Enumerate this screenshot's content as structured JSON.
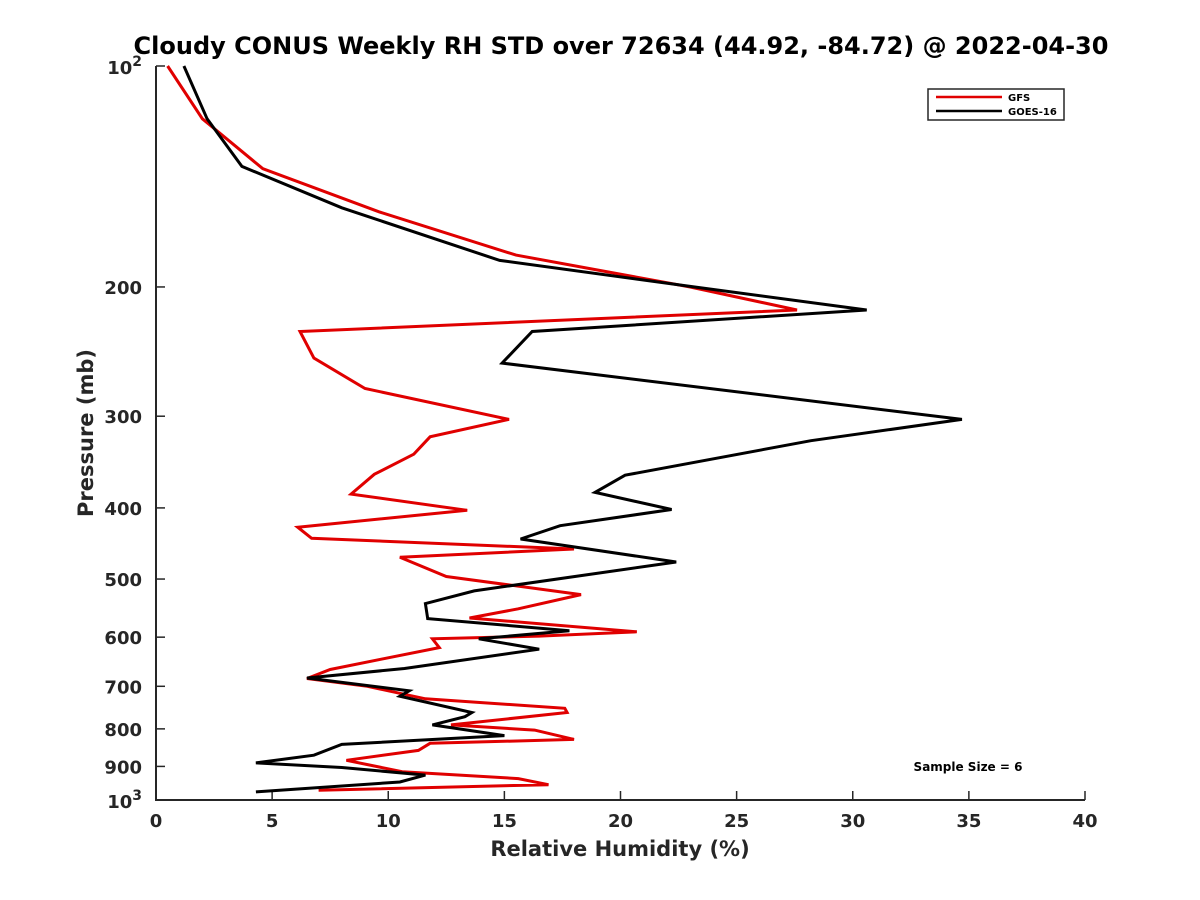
{
  "chart_data": {
    "type": "line",
    "title": "Cloudy CONUS Weekly RH STD over 72634 (44.92, -84.72) @ 2022-04-30",
    "xlabel": "Relative Humidity (%)",
    "ylabel": "Pressure (mb)",
    "xlim": [
      0,
      40
    ],
    "ylim": [
      100,
      1000
    ],
    "y_scale": "log",
    "y_reversed": true,
    "grid": false,
    "legend_position": "top-right",
    "x_ticks": [
      0,
      5,
      10,
      15,
      20,
      25,
      30,
      35,
      40
    ],
    "x_tick_labels": [
      "0",
      "5",
      "10",
      "15",
      "20",
      "25",
      "30",
      "35",
      "40"
    ],
    "y_ticks": [
      200,
      300,
      400,
      500,
      600,
      700,
      800,
      900
    ],
    "y_tick_labels": [
      "200",
      "300",
      "400",
      "500",
      "600",
      "700",
      "800",
      "900"
    ],
    "y_decade_ticks": [
      {
        "value": 100,
        "base": "10",
        "exp": "2"
      },
      {
        "value": 1000,
        "base": "10",
        "exp": "3"
      }
    ],
    "annotation": "Sample Size = 6",
    "series": [
      {
        "name": "GFS",
        "color": "#e00000",
        "points": [
          [
            0.5,
            100
          ],
          [
            2.0,
            118
          ],
          [
            4.6,
            138
          ],
          [
            9.6,
            158
          ],
          [
            15.5,
            181
          ],
          [
            23.0,
            200
          ],
          [
            27.6,
            215
          ],
          [
            6.2,
            230
          ],
          [
            6.8,
            250
          ],
          [
            9.0,
            275
          ],
          [
            15.2,
            303
          ],
          [
            11.8,
            320
          ],
          [
            11.1,
            338
          ],
          [
            9.4,
            360
          ],
          [
            8.4,
            383
          ],
          [
            13.4,
            403
          ],
          [
            6.1,
            425
          ],
          [
            6.7,
            440
          ],
          [
            18.0,
            455
          ],
          [
            10.5,
            467
          ],
          [
            12.5,
            496
          ],
          [
            18.3,
            525
          ],
          [
            15.6,
            549
          ],
          [
            13.5,
            565
          ],
          [
            20.7,
            590
          ],
          [
            16.5,
            598
          ],
          [
            11.9,
            603
          ],
          [
            12.2,
            620
          ],
          [
            9.7,
            643
          ],
          [
            7.5,
            664
          ],
          [
            6.5,
            683
          ],
          [
            9.1,
            700
          ],
          [
            11.6,
            728
          ],
          [
            17.6,
            750
          ],
          [
            17.7,
            760
          ],
          [
            12.7,
            790
          ],
          [
            16.3,
            803
          ],
          [
            18.0,
            827
          ],
          [
            11.8,
            837
          ],
          [
            11.3,
            856
          ],
          [
            8.2,
            883
          ],
          [
            10.6,
            915
          ],
          [
            15.6,
            935
          ],
          [
            16.9,
            953
          ],
          [
            7.0,
            970
          ]
        ]
      },
      {
        "name": "GOES-16",
        "color": "#000000",
        "points": [
          [
            1.2,
            100
          ],
          [
            2.2,
            118
          ],
          [
            3.7,
            137
          ],
          [
            8.0,
            156
          ],
          [
            14.8,
            184
          ],
          [
            23.2,
            200
          ],
          [
            30.6,
            215
          ],
          [
            16.2,
            230
          ],
          [
            14.9,
            254
          ],
          [
            34.7,
            303
          ],
          [
            28.2,
            324
          ],
          [
            20.2,
            361
          ],
          [
            18.9,
            381
          ],
          [
            22.2,
            402
          ],
          [
            17.4,
            423
          ],
          [
            15.7,
            441
          ],
          [
            22.4,
            474
          ],
          [
            13.7,
            519
          ],
          [
            11.6,
            540
          ],
          [
            11.7,
            566
          ],
          [
            17.8,
            588
          ],
          [
            13.9,
            603
          ],
          [
            16.5,
            623
          ],
          [
            10.7,
            662
          ],
          [
            6.5,
            682
          ],
          [
            10.9,
            710
          ],
          [
            10.5,
            722
          ],
          [
            13.6,
            760
          ],
          [
            13.3,
            770
          ],
          [
            11.9,
            790
          ],
          [
            15.0,
            817
          ],
          [
            8.0,
            840
          ],
          [
            6.8,
            869
          ],
          [
            4.3,
            890
          ],
          [
            8.0,
            903
          ],
          [
            11.6,
            925
          ],
          [
            10.5,
            945
          ],
          [
            4.3,
            975
          ]
        ]
      }
    ]
  }
}
